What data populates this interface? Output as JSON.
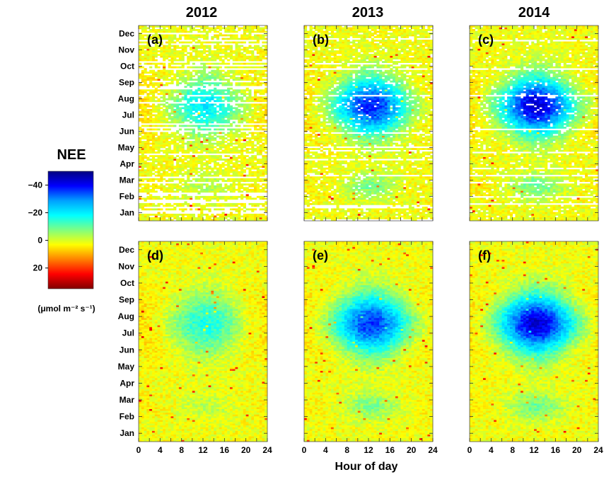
{
  "chart_data": {
    "type": "heatmap",
    "years": [
      "2012",
      "2013",
      "2014"
    ],
    "months": [
      "Jan",
      "Feb",
      "Mar",
      "Apr",
      "May",
      "Jun",
      "Jul",
      "Aug",
      "Sep",
      "Oct",
      "Nov",
      "Dec"
    ],
    "hour_ticks": [
      "0",
      "4",
      "8",
      "12",
      "16",
      "20",
      "24"
    ],
    "xlim": [
      0,
      24
    ],
    "xlabel": "Hour of day",
    "colorbar": {
      "title": "NEE",
      "unit_label": "(μmol m⁻² s⁻¹)",
      "range": [
        -50,
        35
      ],
      "ticks": [
        {
          "value": -40,
          "label": "−40"
        },
        {
          "value": -20,
          "label": "−20"
        },
        {
          "value": 0,
          "label": "0"
        },
        {
          "value": 20,
          "label": "20"
        }
      ],
      "reversed": true,
      "colormap": [
        "#000080",
        "#0000ff",
        "#00a0ff",
        "#00ffff",
        "#7fff80",
        "#ffff00",
        "#ff8000",
        "#ff0000",
        "#800000"
      ]
    },
    "panels": [
      {
        "id": "a",
        "label": "(a)",
        "year": "2012",
        "row": "top",
        "min_uptake": -22,
        "gap_fraction": 0.45
      },
      {
        "id": "b",
        "label": "(b)",
        "year": "2013",
        "row": "top",
        "min_uptake": -40,
        "gap_fraction": 0.28
      },
      {
        "id": "c",
        "label": "(c)",
        "year": "2014",
        "row": "top",
        "min_uptake": -45,
        "gap_fraction": 0.22
      },
      {
        "id": "d",
        "label": "(d)",
        "year": "2012",
        "row": "bottom",
        "min_uptake": -18,
        "gap_fraction": 0
      },
      {
        "id": "e",
        "label": "(e)",
        "year": "2013",
        "row": "bottom",
        "min_uptake": -38,
        "gap_fraction": 0
      },
      {
        "id": "f",
        "label": "(f)",
        "year": "2014",
        "row": "bottom",
        "min_uptake": -45,
        "gap_fraction": 0
      }
    ]
  }
}
